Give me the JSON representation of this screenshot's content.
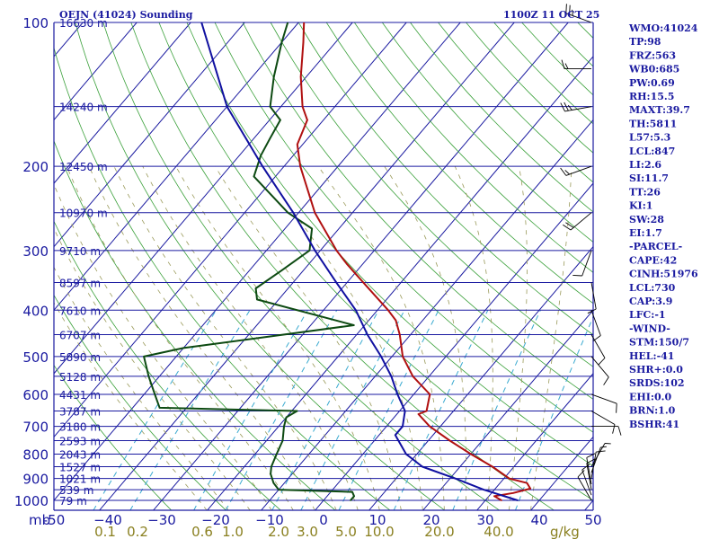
{
  "chart_data": {
    "type": "line",
    "subtype": "skew-T log-P sounding",
    "title_left": "OEJN (41024) Sounding",
    "title_right": "1100Z 11 OCT 25",
    "pressure_label": "mb",
    "pressure_ticks": [
      100,
      200,
      300,
      400,
      500,
      600,
      700,
      800,
      900,
      1000
    ],
    "height_ticks": [
      {
        "p": 100,
        "label": "16630 m"
      },
      {
        "p": 150,
        "label": "14240 m"
      },
      {
        "p": 200,
        "label": "12450 m"
      },
      {
        "p": 250,
        "label": "10970 m"
      },
      {
        "p": 300,
        "label": "9710 m"
      },
      {
        "p": 350,
        "label": "8597 m"
      },
      {
        "p": 400,
        "label": "7610 m"
      },
      {
        "p": 450,
        "label": "6707 m"
      },
      {
        "p": 500,
        "label": "5890 m"
      },
      {
        "p": 550,
        "label": "5128 m"
      },
      {
        "p": 600,
        "label": "4431 m"
      },
      {
        "p": 650,
        "label": "3787 m"
      },
      {
        "p": 700,
        "label": "3180 m"
      },
      {
        "p": 750,
        "label": "2593 m"
      },
      {
        "p": 800,
        "label": "2043 m"
      },
      {
        "p": 850,
        "label": "1527 m"
      },
      {
        "p": 900,
        "label": "1021 m"
      },
      {
        "p": 950,
        "label": "539 m"
      },
      {
        "p": 1000,
        "label": "79 m"
      }
    ],
    "temperature_ticks": [
      -50,
      -40,
      -30,
      -20,
      -10,
      0,
      10,
      20,
      30,
      40,
      50
    ],
    "temperature_tick_labels": [
      "-50",
      "−40",
      "−30",
      "−20",
      "−10",
      "0",
      "10",
      "20",
      "30",
      "40",
      "50"
    ],
    "mixing_ratio_labels": [
      "0.1",
      "0.2",
      "0.6",
      "1.0",
      "2.0",
      "3.0",
      "5.0",
      "10.0",
      "20.0",
      "40.0"
    ],
    "mixing_ratio_unit": "g/kg",
    "series": [
      {
        "name": "Temperature",
        "color": "#b01010",
        "points": [
          {
            "p": 1000,
            "t": 33
          },
          {
            "p": 980,
            "t": 31
          },
          {
            "p": 965,
            "t": 34
          },
          {
            "p": 945,
            "t": 36.5
          },
          {
            "p": 920,
            "t": 35
          },
          {
            "p": 900,
            "t": 31
          },
          {
            "p": 850,
            "t": 26
          },
          {
            "p": 800,
            "t": 20
          },
          {
            "p": 750,
            "t": 14
          },
          {
            "p": 700,
            "t": 8
          },
          {
            "p": 660,
            "t": 4
          },
          {
            "p": 650,
            "t": 5
          },
          {
            "p": 600,
            "t": 3
          },
          {
            "p": 550,
            "t": -3
          },
          {
            "p": 500,
            "t": -8
          },
          {
            "p": 450,
            "t": -12
          },
          {
            "p": 420,
            "t": -15
          },
          {
            "p": 400,
            "t": -18
          },
          {
            "p": 350,
            "t": -27
          },
          {
            "p": 320,
            "t": -33
          },
          {
            "p": 300,
            "t": -37
          },
          {
            "p": 250,
            "t": -47
          },
          {
            "p": 200,
            "t": -57
          },
          {
            "p": 180,
            "t": -61
          },
          {
            "p": 160,
            "t": -63
          },
          {
            "p": 150,
            "t": -66
          },
          {
            "p": 130,
            "t": -71
          },
          {
            "p": 110,
            "t": -76
          },
          {
            "p": 100,
            "t": -79
          }
        ]
      },
      {
        "name": "Dewpoint",
        "color": "#0d4a12",
        "points": [
          {
            "p": 1000,
            "t": 5
          },
          {
            "p": 980,
            "t": 5
          },
          {
            "p": 960,
            "t": 4
          },
          {
            "p": 950,
            "t": -10
          },
          {
            "p": 920,
            "t": -12
          },
          {
            "p": 880,
            "t": -14
          },
          {
            "p": 850,
            "t": -15
          },
          {
            "p": 800,
            "t": -16
          },
          {
            "p": 750,
            "t": -17
          },
          {
            "p": 700,
            "t": -19
          },
          {
            "p": 670,
            "t": -20
          },
          {
            "p": 650,
            "t": -19
          },
          {
            "p": 640,
            "t": -45
          },
          {
            "p": 600,
            "t": -48
          },
          {
            "p": 550,
            "t": -52
          },
          {
            "p": 500,
            "t": -56
          },
          {
            "p": 480,
            "t": -50
          },
          {
            "p": 430,
            "t": -22
          },
          {
            "p": 380,
            "t": -44
          },
          {
            "p": 360,
            "t": -46
          },
          {
            "p": 330,
            "t": -44
          },
          {
            "p": 300,
            "t": -42
          },
          {
            "p": 270,
            "t": -45
          },
          {
            "p": 250,
            "t": -52
          },
          {
            "p": 210,
            "t": -64
          },
          {
            "p": 190,
            "t": -66
          },
          {
            "p": 175,
            "t": -67
          },
          {
            "p": 160,
            "t": -68
          },
          {
            "p": 150,
            "t": -72
          },
          {
            "p": 130,
            "t": -76
          },
          {
            "p": 110,
            "t": -80
          },
          {
            "p": 100,
            "t": -82
          }
        ]
      },
      {
        "name": "Parcel",
        "color": "#1010a0",
        "points": [
          {
            "p": 1000,
            "t": 36
          },
          {
            "p": 950,
            "t": 28
          },
          {
            "p": 900,
            "t": 21
          },
          {
            "p": 850,
            "t": 13
          },
          {
            "p": 800,
            "t": 8
          },
          {
            "p": 730,
            "t": 3
          },
          {
            "p": 700,
            "t": 3
          },
          {
            "p": 650,
            "t": 1
          },
          {
            "p": 600,
            "t": -3
          },
          {
            "p": 550,
            "t": -7
          },
          {
            "p": 500,
            "t": -12
          },
          {
            "p": 450,
            "t": -18
          },
          {
            "p": 400,
            "t": -24
          },
          {
            "p": 350,
            "t": -32
          },
          {
            "p": 300,
            "t": -41
          },
          {
            "p": 250,
            "t": -51
          },
          {
            "p": 200,
            "t": -64
          },
          {
            "p": 150,
            "t": -80
          },
          {
            "p": 100,
            "t": -98
          }
        ]
      }
    ],
    "wind_barbs": [
      {
        "p": 1000,
        "dir": 330,
        "spd": 10
      },
      {
        "p": 975,
        "dir": 340,
        "spd": 10
      },
      {
        "p": 950,
        "dir": 350,
        "spd": 10
      },
      {
        "p": 925,
        "dir": 350,
        "spd": 10
      },
      {
        "p": 900,
        "dir": 10,
        "spd": 10
      },
      {
        "p": 875,
        "dir": 20,
        "spd": 5
      },
      {
        "p": 850,
        "dir": 30,
        "spd": 5
      },
      {
        "p": 700,
        "dir": 90,
        "spd": 10
      },
      {
        "p": 650,
        "dir": 120,
        "spd": 10
      },
      {
        "p": 600,
        "dir": 110,
        "spd": 10
      },
      {
        "p": 500,
        "dir": 140,
        "spd": 10
      },
      {
        "p": 450,
        "dir": 150,
        "spd": 10
      },
      {
        "p": 400,
        "dir": 160,
        "spd": 10
      },
      {
        "p": 350,
        "dir": 170,
        "spd": 10
      },
      {
        "p": 300,
        "dir": 200,
        "spd": 10
      },
      {
        "p": 250,
        "dir": 230,
        "spd": 20
      },
      {
        "p": 200,
        "dir": 250,
        "spd": 15
      },
      {
        "p": 150,
        "dir": 260,
        "spd": 25
      },
      {
        "p": 125,
        "dir": 270,
        "spd": 15
      },
      {
        "p": 100,
        "dir": 290,
        "spd": 25
      }
    ],
    "indices": [
      "WMO:41024",
      "TP:98",
      "FRZ:563",
      "WB0:685",
      "PW:0.69",
      "RH:15.5",
      "MAXT:39.7",
      "TH:5811",
      "L57:5.3",
      "LCL:847",
      "LI:2.6",
      "SI:11.7",
      "TT:26",
      "KI:1",
      "SW:28",
      "EI:1.7",
      "-PARCEL-",
      "CAPE:42",
      "CINH:51976",
      "LCL:730",
      "CAP:3.9",
      "LFC:-1",
      "-WIND-",
      "STM:150/7",
      "HEL:-41",
      "SHR+:0.0",
      "SRDS:102",
      "EHI:0.0",
      "BRN:1.0",
      "BSHR:41"
    ]
  },
  "colors": {
    "axis": "#1a1aa0",
    "isotherm": "#1a1aa0",
    "dry_adiabat": "#3aa03a",
    "moist_adiabat": "#3aa03a",
    "mixing_ratio": "#3aaad0",
    "moist_dash": "#9a9a5a",
    "temperature": "#b01010",
    "dewpoint": "#0d4a12",
    "parcel": "#1010a0",
    "barb": "#000000"
  }
}
